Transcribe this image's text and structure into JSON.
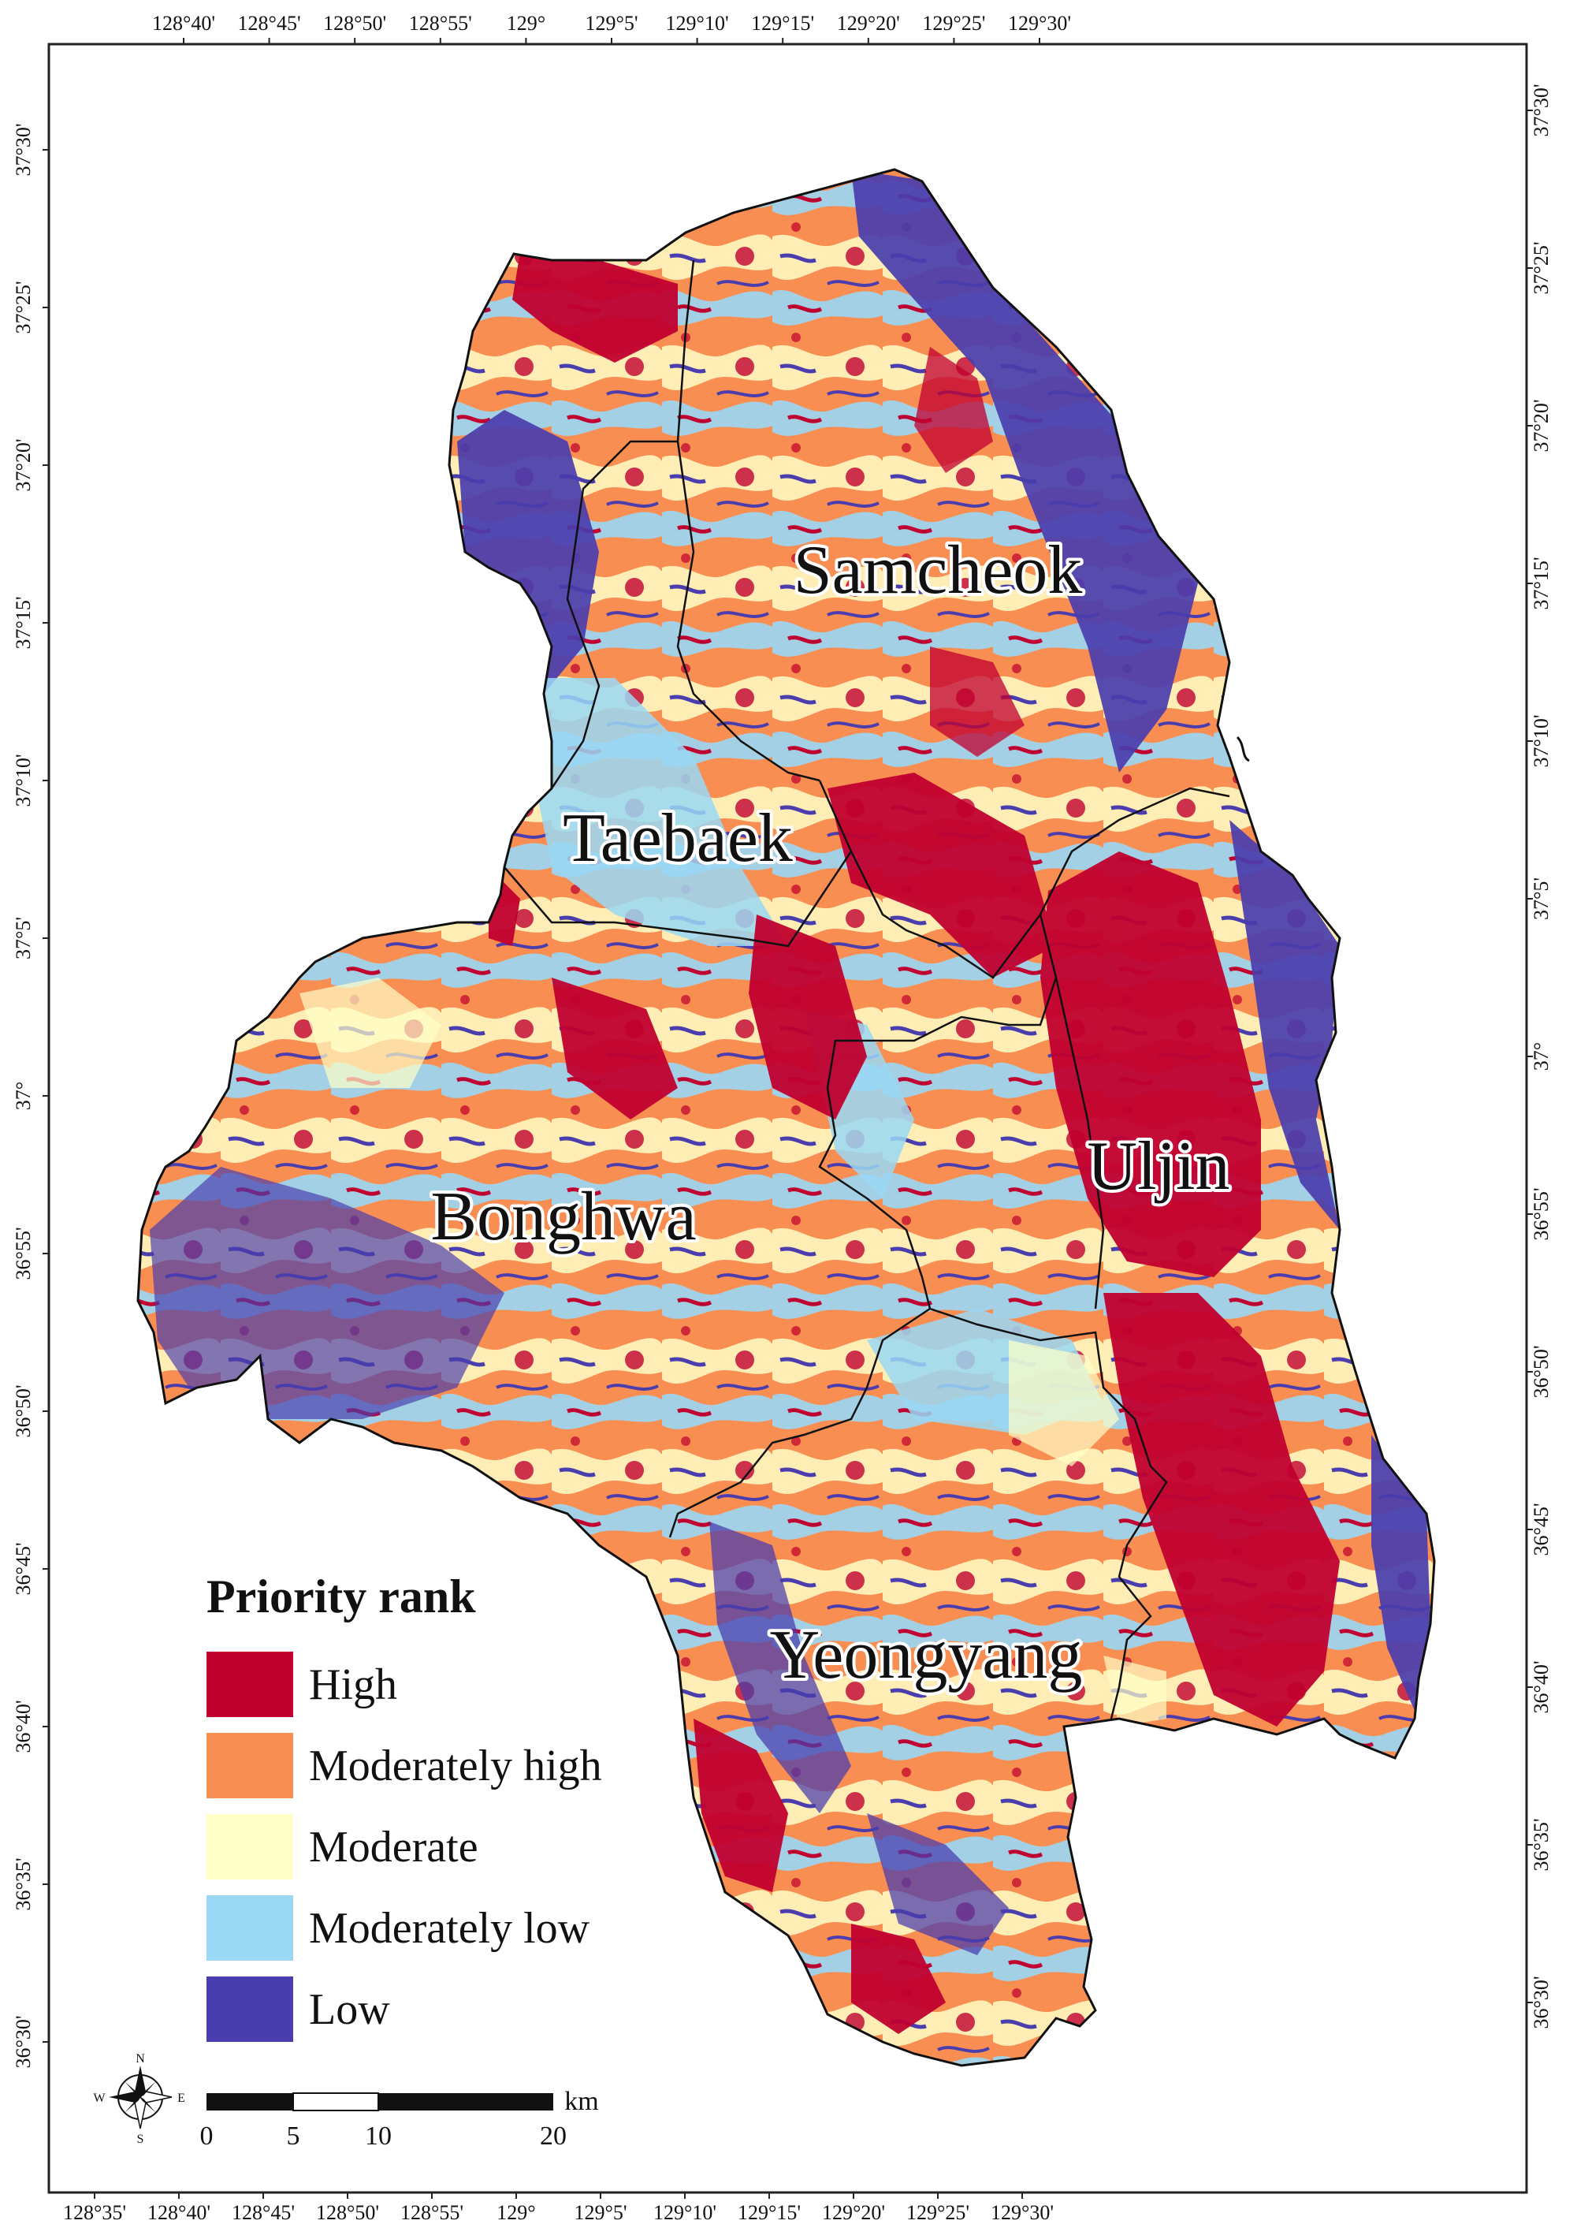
{
  "map": {
    "legend": {
      "title": "Priority rank",
      "items": [
        {
          "label": "High",
          "color": "#C0002F"
        },
        {
          "label": "Moderately high",
          "color": "#F98E52"
        },
        {
          "label": "Moderate",
          "color": "#FFFFC7"
        },
        {
          "label": "Moderately low",
          "color": "#9AD8F4"
        },
        {
          "label": "Low",
          "color": "#4A3DAE"
        }
      ]
    },
    "regions": [
      {
        "key": "samcheok",
        "name": "Samcheok"
      },
      {
        "key": "taebaek",
        "name": "Taebaek"
      },
      {
        "key": "uljin",
        "name": "Uljin"
      },
      {
        "key": "bonghwa",
        "name": "Bonghwa"
      },
      {
        "key": "yeongyang",
        "name": "Yeongyang"
      }
    ],
    "top_ticks": [
      "128°40'",
      "128°45'",
      "128°50'",
      "128°55'",
      "129°",
      "129°5'",
      "129°10'",
      "129°15'",
      "129°20'",
      "129°25'",
      "129°30'"
    ],
    "bottom_ticks": [
      "128°35'",
      "128°40'",
      "128°45'",
      "128°50'",
      "128°55'",
      "129°",
      "129°5'",
      "129°10'",
      "129°15'",
      "129°20'",
      "129°25'",
      "129°30'"
    ],
    "left_ticks": [
      "37°30'",
      "37°25'",
      "37°20'",
      "37°15'",
      "37°10'",
      "37°5'",
      "37°",
      "36°55'",
      "36°50'",
      "36°45'",
      "36°40'",
      "36°35'",
      "36°30'"
    ],
    "right_ticks": [
      "37°30'",
      "37°25'",
      "37°20'",
      "37°15'",
      "37°10'",
      "37°5'",
      "37°",
      "36°55'",
      "36°50'",
      "36°45'",
      "36°40'",
      "36°35'",
      "36°30'"
    ],
    "scale_bar": {
      "labels": [
        "0",
        "5",
        "10",
        "20"
      ],
      "unit": "km"
    },
    "compass": {
      "n": "N",
      "s": "S",
      "e": "E",
      "w": "W"
    }
  }
}
